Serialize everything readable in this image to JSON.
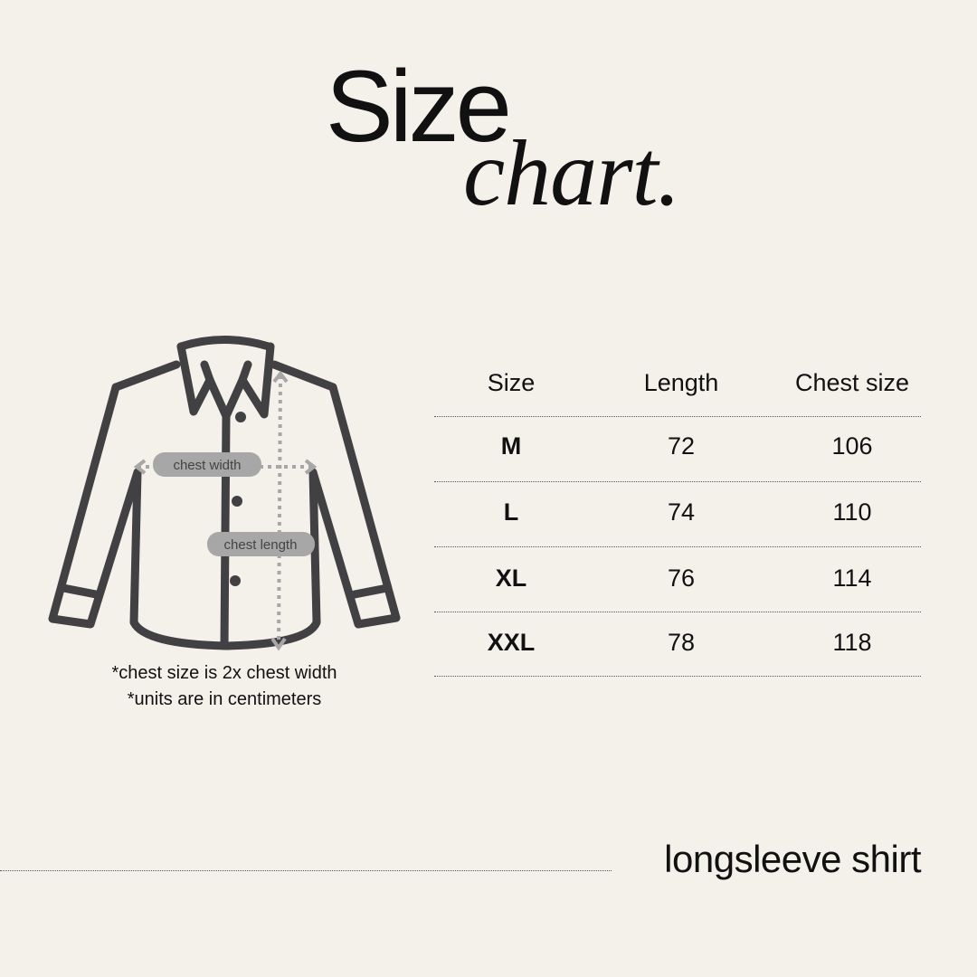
{
  "title": {
    "line1": "Size",
    "line2": "chart."
  },
  "diagram": {
    "chest_width_label": "chest width",
    "chest_length_label": "chest length"
  },
  "notes": [
    "*chest size is 2x chest width",
    "*units are in centimeters"
  ],
  "table": {
    "headers": [
      "Size",
      "Length",
      "Chest size"
    ],
    "rows": [
      {
        "size": "M",
        "length": "72",
        "chest": "106"
      },
      {
        "size": "L",
        "length": "74",
        "chest": "110"
      },
      {
        "size": "XL",
        "length": "76",
        "chest": "114"
      },
      {
        "size": "XXL",
        "length": "78",
        "chest": "118"
      }
    ]
  },
  "footer": {
    "product": "longsleeve shirt"
  },
  "colors": {
    "background": "#f4f0ea",
    "outline": "#414042",
    "measure": "#a7a7a7"
  }
}
